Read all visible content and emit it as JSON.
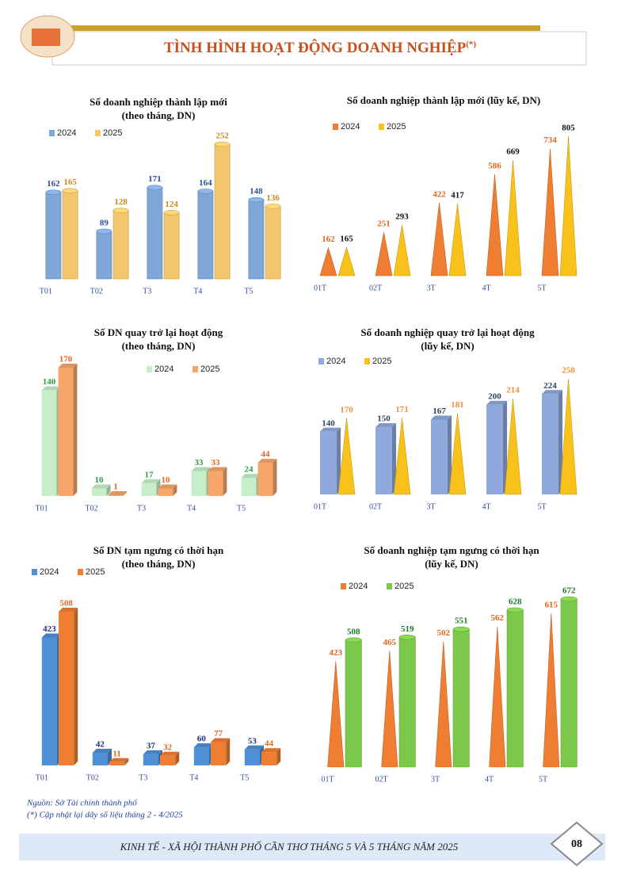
{
  "header": {
    "title": "TÌNH HÌNH HOẠT ĐỘNG DOANH NGHIỆP",
    "title_mark": "(*)"
  },
  "chart_data": [
    {
      "type": "bar",
      "title": "Số doanh nghiệp thành lập mới",
      "subtitle": "(theo tháng, DN)",
      "categories": [
        "T01",
        "T02",
        "T3",
        "T4",
        "T5"
      ],
      "series": [
        {
          "name": "2024",
          "color": "#7ea7d8",
          "label_color": "#2f4f8f",
          "values": [
            162,
            89,
            171,
            164,
            148
          ]
        },
        {
          "name": "2025",
          "color": "#f3c66b",
          "label_color": "#c98a1b",
          "values": [
            165,
            128,
            124,
            252,
            136
          ]
        }
      ]
    },
    {
      "type": "cone",
      "title": "Số doanh nghiệp thành lập mới (lũy kế, DN)",
      "categories": [
        "01T",
        "02T",
        "3T",
        "4T",
        "5T"
      ],
      "series": [
        {
          "name": "2024",
          "color": "#ef7d32",
          "label_color": "#e0661c",
          "values": [
            162,
            251,
            422,
            586,
            734
          ]
        },
        {
          "name": "2025",
          "color": "#f8c21a",
          "label_color": "#111111",
          "values": [
            165,
            293,
            417,
            669,
            805
          ]
        }
      ]
    },
    {
      "type": "box",
      "title": "Số DN quay trở lại hoạt động",
      "subtitle": "(theo tháng, DN)",
      "categories": [
        "T01",
        "T02",
        "T3",
        "T4",
        "T5"
      ],
      "series": [
        {
          "name": "2024",
          "color": "#c6efc9",
          "label_color": "#2e9a45",
          "values": [
            140,
            10,
            17,
            33,
            24
          ]
        },
        {
          "name": "2025",
          "color": "#f7a66a",
          "label_color": "#e0661c",
          "values": [
            170,
            1,
            10,
            33,
            44
          ]
        }
      ]
    },
    {
      "type": "box",
      "title": "Số doanh nghiệp quay trở lại hoạt động",
      "subtitle": "(lũy kế, DN)",
      "categories": [
        "01T",
        "02T",
        "3T",
        "4T",
        "5T"
      ],
      "series": [
        {
          "name": "2024",
          "color": "#8fa9dc",
          "label_color": "#2f4060",
          "values": [
            140,
            150,
            167,
            200,
            224
          ]
        },
        {
          "name": "2025",
          "type": "cone",
          "color": "#f8c21a",
          "label_color": "#f0903a",
          "values": [
            170,
            171,
            181,
            214,
            258
          ]
        }
      ]
    },
    {
      "type": "box",
      "title": "Số DN tạm ngưng có thời hạn",
      "subtitle": "(theo tháng, DN)",
      "categories": [
        "T01",
        "T02",
        "T3",
        "T4",
        "T5"
      ],
      "series": [
        {
          "name": "2024",
          "color": "#4f8fd6",
          "label_color": "#1f2f80",
          "values": [
            423,
            42,
            37,
            60,
            53
          ]
        },
        {
          "name": "2025",
          "color": "#ef7d32",
          "label_color": "#e0661c",
          "values": [
            508,
            11,
            32,
            77,
            44
          ]
        }
      ]
    },
    {
      "type": "bar",
      "title": "Số doanh nghiệp tạm ngưng có thời hạn",
      "subtitle": "(lũy kế, DN)",
      "categories": [
        "01T",
        "02T",
        "3T",
        "4T",
        "5T"
      ],
      "series": [
        {
          "name": "2024",
          "type": "cone",
          "color": "#ef7d32",
          "label_color": "#e0661c",
          "values": [
            423,
            465,
            502,
            562,
            615
          ]
        },
        {
          "name": "2025",
          "color": "#7cc84a",
          "label_color": "#1f7a2a",
          "values": [
            508,
            519,
            551,
            628,
            672
          ]
        }
      ]
    }
  ],
  "notes": [
    "Nguồn: Sở Tài chính thành phố",
    "(*) Cập nhật lại dãy số liệu tháng 2 - 4/2025"
  ],
  "footer": {
    "text": "KINH TẾ - XÃ HỘI THÀNH PHỐ CẦN THƠ THÁNG 5 VÀ 5 THÁNG NĂM 2025",
    "page": "08"
  }
}
